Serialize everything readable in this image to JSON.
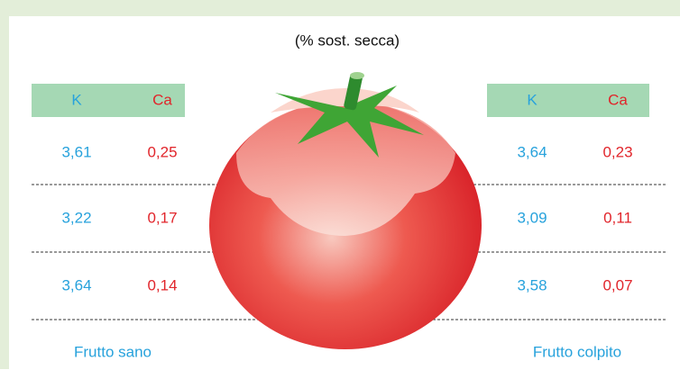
{
  "header": {
    "subtitle": "(% sost. secca)"
  },
  "tables": [
    {
      "columns": [
        "K",
        "Ca"
      ],
      "rows": [
        [
          "3,61",
          "0,25"
        ],
        [
          "3,22",
          "0,17"
        ],
        [
          "3,64",
          "0,14"
        ]
      ],
      "caption": "Frutto sano"
    },
    {
      "columns": [
        "K",
        "Ca"
      ],
      "rows": [
        [
          "3,64",
          "0,23"
        ],
        [
          "3,09",
          "0,11"
        ],
        [
          "3,58",
          "0,07"
        ]
      ],
      "caption": "Frutto colpito"
    }
  ]
}
